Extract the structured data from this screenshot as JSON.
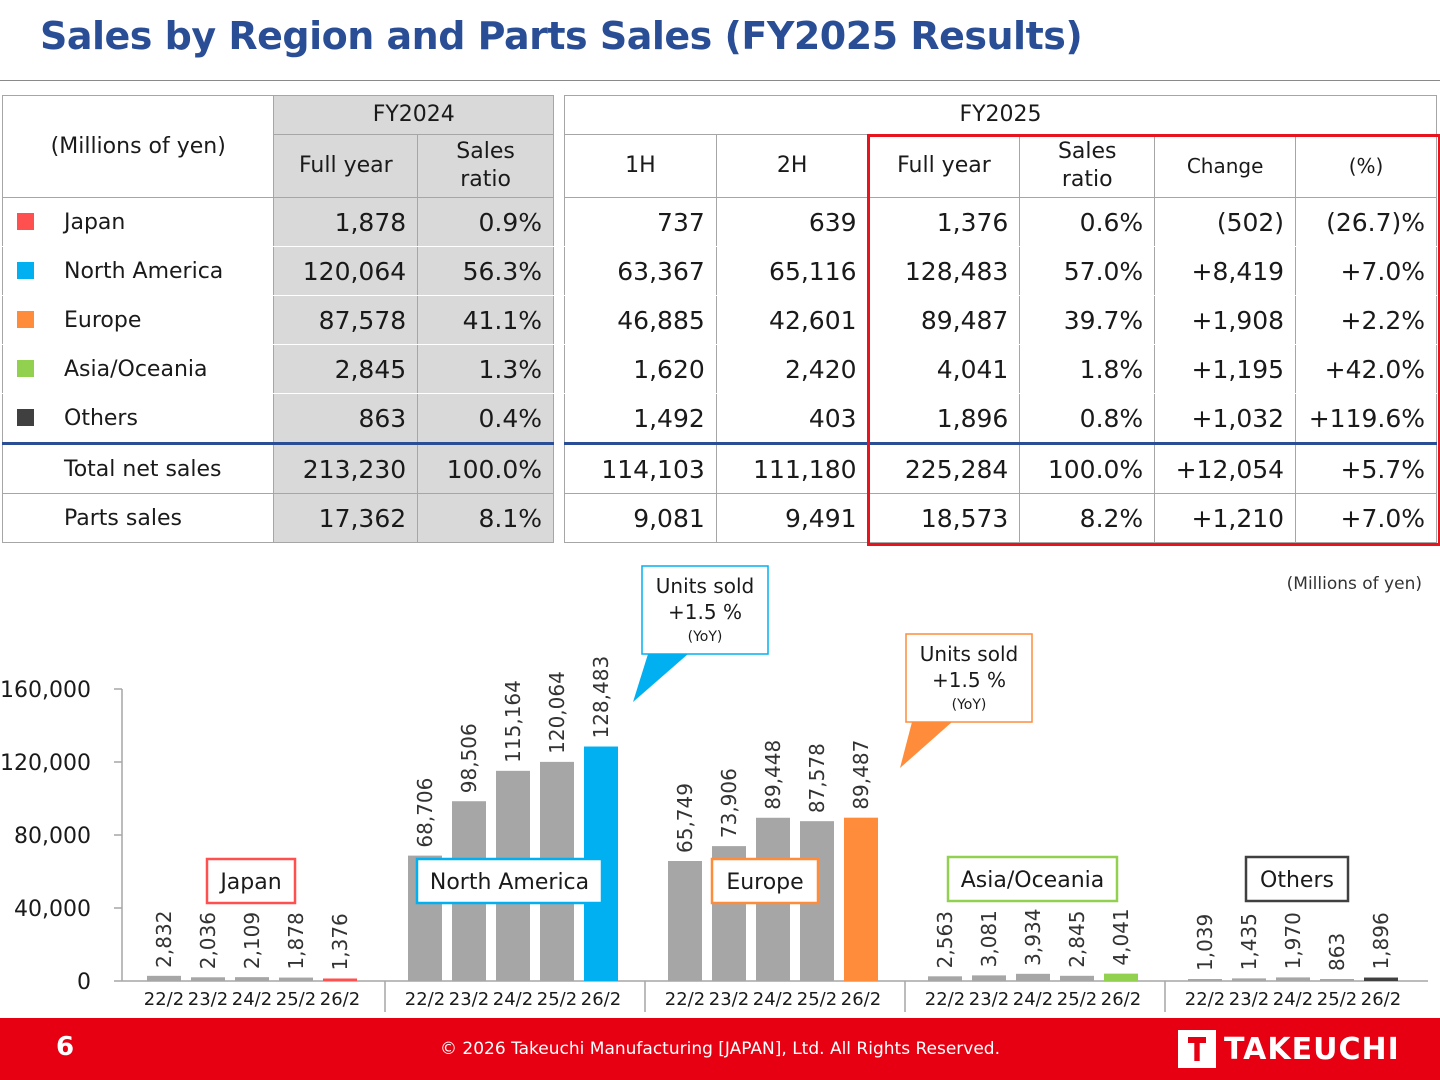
{
  "title": "Sales by Region and Parts Sales (FY2025 Results)",
  "table": {
    "unit_label": "(Millions of yen)",
    "fy2024": {
      "label": "FY2024",
      "cols": [
        "Full year",
        "Sales ratio"
      ]
    },
    "fy2025": {
      "label": "FY2025",
      "cols": [
        "1H",
        "2H",
        "Full year",
        "Sales ratio",
        "Change",
        "(%)"
      ]
    },
    "rows": [
      {
        "name": "Japan",
        "color": "#ff5050",
        "v": [
          "1,878",
          "0.9%",
          "737",
          "639",
          "1,376",
          "0.6%",
          "(502)",
          "(26.7)%"
        ]
      },
      {
        "name": "North America",
        "color": "#00b0f0",
        "v": [
          "120,064",
          "56.3%",
          "63,367",
          "65,116",
          "128,483",
          "57.0%",
          "+8,419",
          "+7.0%"
        ]
      },
      {
        "name": "Europe",
        "color": "#ff8c3a",
        "v": [
          "87,578",
          "41.1%",
          "46,885",
          "42,601",
          "89,487",
          "39.7%",
          "+1,908",
          "+2.2%"
        ]
      },
      {
        "name": "Asia/Oceania",
        "color": "#92d050",
        "v": [
          "2,845",
          "1.3%",
          "1,620",
          "2,420",
          "4,041",
          "1.8%",
          "+1,195",
          "+42.0%"
        ]
      },
      {
        "name": "Others",
        "color": "#404040",
        "v": [
          "863",
          "0.4%",
          "1,492",
          "403",
          "1,896",
          "0.8%",
          "+1,032",
          "+119.6%"
        ]
      },
      {
        "name": "Total net sales",
        "v": [
          "213,230",
          "100.0%",
          "114,103",
          "111,180",
          "225,284",
          "100.0%",
          "+12,054",
          "+5.7%"
        ]
      },
      {
        "name": "Parts sales",
        "v": [
          "17,362",
          "8.1%",
          "9,081",
          "9,491",
          "18,573",
          "8.2%",
          "+1,210",
          "+7.0%"
        ]
      }
    ]
  },
  "chart_data": {
    "type": "bar",
    "unit_note": "(Millions of yen)",
    "ylim": [
      0,
      160000
    ],
    "yticks": [
      "0",
      "40,000",
      "80,000",
      "120,000",
      "160,000"
    ],
    "categories": [
      "22/2",
      "23/2",
      "24/2",
      "25/2",
      "26/2"
    ],
    "groups": [
      {
        "name": "Japan",
        "highlight": "#ff5050",
        "values": [
          2832,
          2036,
          2109,
          1878,
          1376
        ],
        "labels": [
          "2,832",
          "2,036",
          "2,109",
          "1,878",
          "1,376"
        ]
      },
      {
        "name": "North America",
        "highlight": "#00b0f0",
        "values": [
          68706,
          98506,
          115164,
          120064,
          128483
        ],
        "labels": [
          "68,706",
          "98,506",
          "115,164",
          "120,064",
          "128,483"
        ]
      },
      {
        "name": "Europe",
        "highlight": "#ff8c3a",
        "values": [
          65749,
          73906,
          89448,
          87578,
          89487
        ],
        "labels": [
          "65,749",
          "73,906",
          "89,448",
          "87,578",
          "89,487"
        ]
      },
      {
        "name": "Asia/Oceania",
        "highlight": "#92d050",
        "values": [
          2563,
          3081,
          3934,
          2845,
          4041
        ],
        "labels": [
          "2,563",
          "3,081",
          "3,934",
          "2,845",
          "4,041"
        ]
      },
      {
        "name": "Others",
        "highlight": "#404040",
        "values": [
          1039,
          1435,
          1970,
          863,
          1896
        ],
        "labels": [
          "1,039",
          "1,435",
          "1,970",
          "863",
          "1,896"
        ]
      }
    ],
    "callouts": [
      {
        "lines": [
          "Units sold",
          "+1.5 %",
          "(YoY)"
        ],
        "color": "#00b0f0"
      },
      {
        "lines": [
          "Units sold",
          "+1.5 %",
          "(YoY)"
        ],
        "color": "#ff8c3a"
      }
    ],
    "bar_color": "#a6a6a6"
  },
  "footer": {
    "page": "6",
    "copyright": "© 2026 Takeuchi Manufacturing [JAPAN], Ltd. All Rights Reserved.",
    "logo": "TAKEUCHI"
  }
}
